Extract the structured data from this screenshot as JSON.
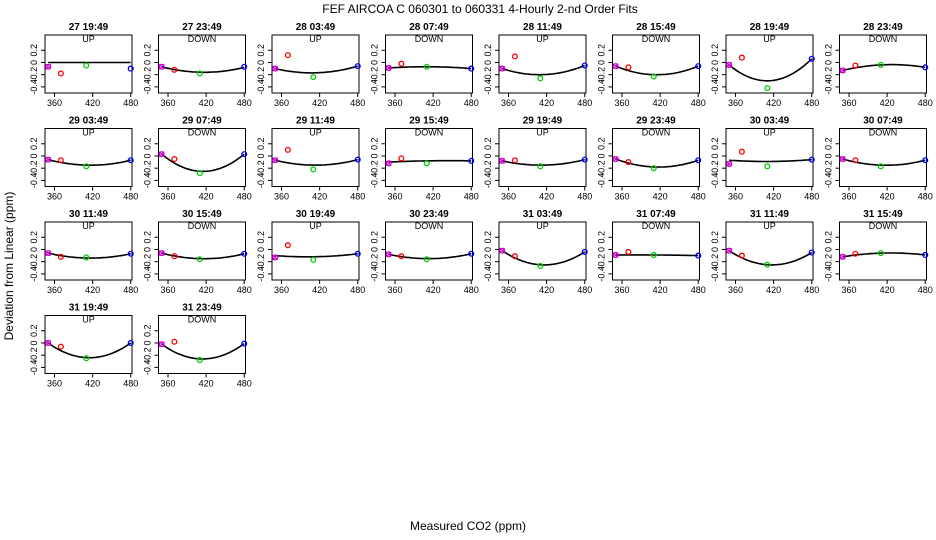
{
  "figure": {
    "title": "FEF   AIRCOA C   060301 to 060331   4-Hourly 2-nd Order Fits",
    "xlabel": "Measured CO2 (ppm)",
    "ylabel": "Deviation from Linear (ppm)"
  },
  "chart_data": {
    "type": "scatter",
    "layout": {
      "rows": 4,
      "cols": 8
    },
    "xlim": [
      345,
      482
    ],
    "ylim": [
      -0.5,
      0.45
    ],
    "xticks": [
      360,
      420,
      480
    ],
    "yticks": [
      0.2,
      0.0,
      -0.2,
      -0.4
    ],
    "ytick_labels": [
      "0.2",
      "0",
      "-0.2",
      "-0.4"
    ],
    "standards_x": [
      350,
      370,
      410,
      480
    ],
    "point_colors": [
      "#cc00cc",
      "#ff0000",
      "#00cc00",
      "#0000ff"
    ],
    "panels": [
      {
        "title": "27 19:49",
        "direction": "UP",
        "y": [
          -0.07,
          -0.18,
          -0.05,
          -0.1
        ],
        "fit": [
          0.0,
          0.0,
          0.0
        ]
      },
      {
        "title": "27 23:49",
        "direction": "DOWN",
        "y": [
          -0.07,
          -0.12,
          -0.18,
          -0.07
        ],
        "fit": [
          -0.07,
          -0.16,
          -0.08
        ]
      },
      {
        "title": "28 03:49",
        "direction": "UP",
        "y": [
          -0.1,
          0.12,
          -0.24,
          -0.06
        ],
        "fit": [
          -0.1,
          -0.17,
          -0.06
        ]
      },
      {
        "title": "28 07:49",
        "direction": "DOWN",
        "y": [
          -0.09,
          -0.02,
          -0.07,
          -0.1
        ],
        "fit": [
          -0.09,
          -0.07,
          -0.1
        ]
      },
      {
        "title": "28 11:49",
        "direction": "UP",
        "y": [
          -0.1,
          0.1,
          -0.26,
          -0.05
        ],
        "fit": [
          -0.1,
          -0.2,
          -0.05
        ]
      },
      {
        "title": "28 15:49",
        "direction": "DOWN",
        "y": [
          -0.06,
          -0.08,
          -0.23,
          -0.06
        ],
        "fit": [
          -0.06,
          -0.2,
          -0.06
        ]
      },
      {
        "title": "28 19:49",
        "direction": "UP",
        "y": [
          -0.04,
          0.08,
          -0.42,
          0.06
        ],
        "fit": [
          -0.04,
          -0.3,
          0.06
        ]
      },
      {
        "title": "28 23:49",
        "direction": "DOWN",
        "y": [
          -0.13,
          -0.05,
          -0.04,
          -0.08
        ],
        "fit": [
          -0.13,
          -0.04,
          -0.08
        ]
      },
      {
        "title": "29 03:49",
        "direction": "UP",
        "y": [
          -0.06,
          -0.07,
          -0.17,
          -0.07
        ],
        "fit": [
          -0.06,
          -0.15,
          -0.07
        ]
      },
      {
        "title": "29 07:49",
        "direction": "DOWN",
        "y": [
          0.03,
          -0.05,
          -0.28,
          0.03
        ],
        "fit": [
          0.03,
          -0.25,
          0.03
        ]
      },
      {
        "title": "29 11:49",
        "direction": "UP",
        "y": [
          -0.07,
          0.1,
          -0.22,
          -0.06
        ],
        "fit": [
          -0.07,
          -0.15,
          -0.06
        ]
      },
      {
        "title": "29 15:49",
        "direction": "DOWN",
        "y": [
          -0.12,
          -0.04,
          -0.12,
          -0.08
        ],
        "fit": [
          -0.1,
          -0.08,
          -0.08
        ]
      },
      {
        "title": "29 19:49",
        "direction": "UP",
        "y": [
          -0.08,
          -0.07,
          -0.17,
          -0.06
        ],
        "fit": [
          -0.08,
          -0.15,
          -0.06
        ]
      },
      {
        "title": "29 23:49",
        "direction": "DOWN",
        "y": [
          -0.05,
          -0.1,
          -0.2,
          -0.07
        ],
        "fit": [
          -0.05,
          -0.18,
          -0.07
        ]
      },
      {
        "title": "30 03:49",
        "direction": "UP",
        "y": [
          -0.13,
          0.07,
          -0.17,
          -0.06
        ],
        "fit": [
          -0.07,
          -0.09,
          -0.06
        ]
      },
      {
        "title": "30 07:49",
        "direction": "DOWN",
        "y": [
          -0.05,
          -0.07,
          -0.17,
          -0.07
        ],
        "fit": [
          -0.05,
          -0.15,
          -0.07
        ]
      },
      {
        "title": "30 11:49",
        "direction": "UP",
        "y": [
          -0.06,
          -0.12,
          -0.13,
          -0.07
        ],
        "fit": [
          -0.06,
          -0.14,
          -0.07
        ]
      },
      {
        "title": "30 15:49",
        "direction": "DOWN",
        "y": [
          -0.06,
          -0.11,
          -0.16,
          -0.07
        ],
        "fit": [
          -0.06,
          -0.15,
          -0.07
        ]
      },
      {
        "title": "30 19:49",
        "direction": "UP",
        "y": [
          -0.13,
          0.07,
          -0.17,
          -0.07
        ],
        "fit": [
          -0.1,
          -0.12,
          -0.07
        ]
      },
      {
        "title": "30 23:49",
        "direction": "DOWN",
        "y": [
          -0.08,
          -0.11,
          -0.16,
          -0.07
        ],
        "fit": [
          -0.08,
          -0.15,
          -0.07
        ]
      },
      {
        "title": "31 03:49",
        "direction": "UP",
        "y": [
          -0.02,
          -0.11,
          -0.27,
          -0.04
        ],
        "fit": [
          -0.02,
          -0.25,
          -0.04
        ]
      },
      {
        "title": "31 07:49",
        "direction": "DOWN",
        "y": [
          -0.09,
          -0.04,
          -0.09,
          -0.1
        ],
        "fit": [
          -0.09,
          -0.09,
          -0.1
        ]
      },
      {
        "title": "31 11:49",
        "direction": "UP",
        "y": [
          -0.02,
          -0.1,
          -0.25,
          -0.05
        ],
        "fit": [
          -0.02,
          -0.25,
          -0.05
        ]
      },
      {
        "title": "31 15:49",
        "direction": "DOWN",
        "y": [
          -0.12,
          -0.07,
          -0.06,
          -0.09
        ],
        "fit": [
          -0.12,
          -0.06,
          -0.09
        ]
      },
      {
        "title": "31 19:49",
        "direction": "UP",
        "y": [
          0.0,
          -0.06,
          -0.25,
          0.0
        ],
        "fit": [
          0.0,
          -0.24,
          0.0
        ]
      },
      {
        "title": "31 23:49",
        "direction": "DOWN",
        "y": [
          -0.02,
          0.02,
          -0.28,
          -0.01
        ],
        "fit": [
          -0.02,
          -0.26,
          -0.01
        ]
      }
    ]
  }
}
